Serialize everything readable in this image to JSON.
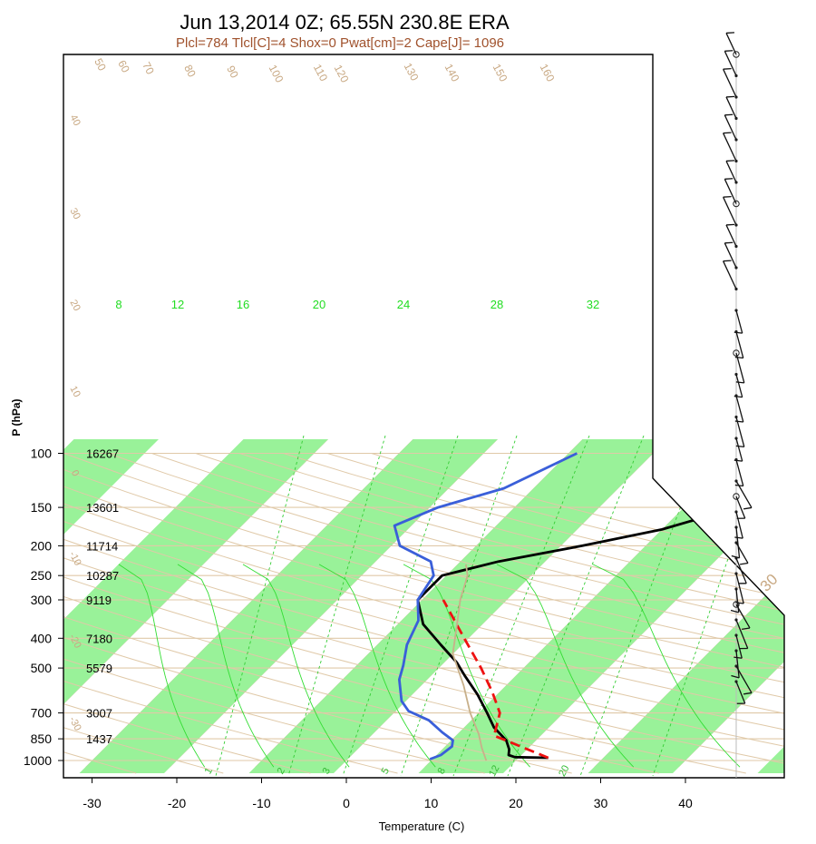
{
  "chart_data": {
    "type": "line",
    "subtype": "skew-t log-p sounding",
    "title": "Jun 13,2014 0Z; 65.55N 230.8E ERA",
    "subtitle": "Plcl=784 Tlcl[C]=4 Shox=0 Pwat[cm]=2 Cape[J]= 1096",
    "xlabel": "Temperature (C)",
    "ylabel": "P (hPa)",
    "xlim": [
      -33,
      52
    ],
    "ylim": [
      1050,
      100
    ],
    "y_scale": "log",
    "x_ticks": [
      "-30",
      "-20",
      "-10",
      "0",
      "10",
      "20",
      "30",
      "40"
    ],
    "pressure_levels": [
      "100",
      "150",
      "200",
      "250",
      "300",
      "400",
      "500",
      "700",
      "850",
      "1000"
    ],
    "heights_m": [
      "16267",
      "13601",
      "11714",
      "10287",
      "9119",
      "7180",
      "5579",
      "3007",
      "1437"
    ],
    "series": [
      {
        "key": "temperature",
        "color": "#000000",
        "dash": "solid",
        "points": [
          [
            23.5,
            980
          ],
          [
            19.5,
            975
          ],
          [
            18.5,
            960
          ],
          [
            17.9,
            920
          ],
          [
            16.5,
            860
          ],
          [
            13.5,
            780
          ],
          [
            11.0,
            700
          ],
          [
            7.7,
            610
          ],
          [
            4.0,
            530
          ],
          [
            1.5,
            480
          ],
          [
            -2.5,
            420
          ],
          [
            -7.0,
            360
          ],
          [
            -10.5,
            300
          ],
          [
            -10.5,
            250
          ],
          [
            -5.5,
            225
          ],
          [
            2.5,
            200
          ],
          [
            10,
            177
          ],
          [
            30,
            105
          ]
        ]
      },
      {
        "key": "dewpoint",
        "color": "#3a5fd9",
        "dash": "solid",
        "points": [
          [
            9.7,
            990
          ],
          [
            10.5,
            960
          ],
          [
            10.8,
            900
          ],
          [
            10.2,
            860
          ],
          [
            8.0,
            810
          ],
          [
            5.0,
            740
          ],
          [
            1.5,
            690
          ],
          [
            -0.5,
            640
          ],
          [
            -3.3,
            545
          ],
          [
            -4.5,
            490
          ],
          [
            -6.5,
            420
          ],
          [
            -8.0,
            350
          ],
          [
            -10.5,
            300
          ],
          [
            -11.5,
            250
          ],
          [
            -13.5,
            225
          ],
          [
            -19,
            200
          ],
          [
            -22,
            172
          ],
          [
            -19,
            150
          ],
          [
            -13.5,
            130
          ],
          [
            -9,
            100
          ]
        ]
      },
      {
        "key": "parcel",
        "color": "#ee1111",
        "dash": "dashed",
        "points": [
          [
            23.5,
            980
          ],
          [
            14.5,
            830
          ],
          [
            12.5,
            700
          ],
          [
            9.2,
            600
          ],
          [
            5.0,
            500
          ],
          [
            -0.5,
            400
          ],
          [
            -7.5,
            300
          ]
        ]
      },
      {
        "key": "virtual-temperature",
        "color": "#c8b08a",
        "dash": "solid",
        "points": [
          [
            16.5,
            1000
          ],
          [
            14.5,
            910
          ],
          [
            12.5,
            820
          ],
          [
            9.0,
            700
          ],
          [
            5.0,
            570
          ],
          [
            0.0,
            450
          ],
          [
            -3.0,
            360
          ],
          [
            -5.5,
            300
          ],
          [
            -7.5,
            250
          ],
          [
            -9,
            230
          ]
        ]
      }
    ],
    "isotherm_labels": [
      "20",
      "10",
      "0",
      "10",
      "20",
      "30"
    ],
    "dry_adiabat_labels": [
      "50",
      "60",
      "70",
      "80",
      "90",
      "100",
      "110",
      "120",
      "130",
      "140",
      "150",
      "160",
      "40",
      "30",
      "20",
      "10",
      "0",
      "-10",
      "-20",
      "-30",
      "30",
      "20",
      "10",
      "0",
      "10",
      "20",
      "30"
    ],
    "mixing_ratio_labels": [
      "1",
      "2",
      "3",
      "5",
      "8",
      "12",
      "20"
    ],
    "moist_adiabat_labels": [
      "8",
      "12",
      "16",
      "20",
      "24",
      "28",
      "32"
    ],
    "wind_barbs": "right margin, approx. 35 levels",
    "colors": {
      "band": "#99f299",
      "grid": "#e0c9a8",
      "moist": "#33dd33",
      "label_brown": "#c8a882"
    }
  }
}
